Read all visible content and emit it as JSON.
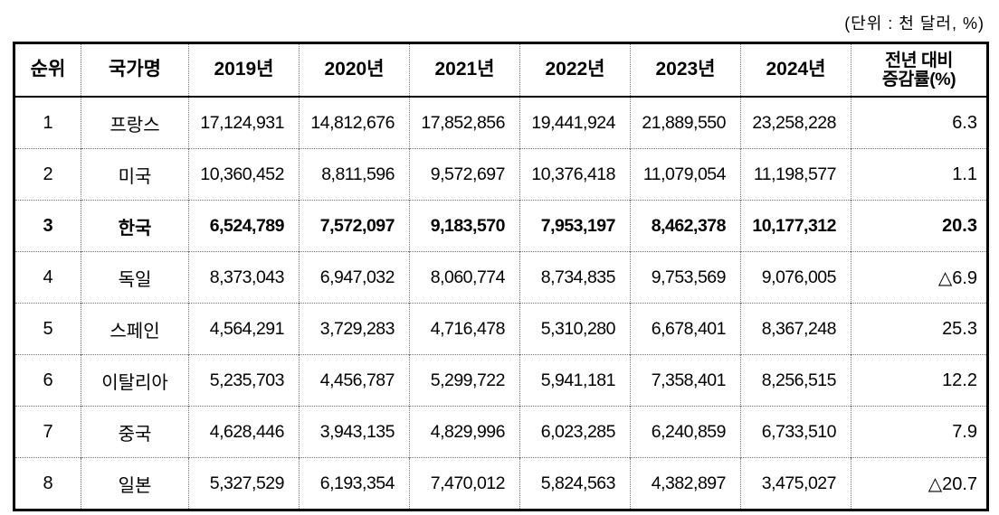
{
  "unit_label": "(단위 : 천 달러, %)",
  "table": {
    "columns": [
      "순위",
      "국가명",
      "2019년",
      "2020년",
      "2021년",
      "2022년",
      "2023년",
      "2024년"
    ],
    "change_header": {
      "full": "전년 대비 증감률(%)",
      "line1": "전년 대비",
      "line2": "증감률(%)"
    },
    "rows": [
      {
        "rank": "1",
        "country": "프랑스",
        "values": [
          "17,124,931",
          "14,812,676",
          "17,852,856",
          "19,441,924",
          "21,889,550",
          "23,258,228"
        ],
        "change": "6.3",
        "bold": false
      },
      {
        "rank": "2",
        "country": "미국",
        "values": [
          "10,360,452",
          "8,811,596",
          "9,572,697",
          "10,376,418",
          "11,079,054",
          "11,198,577"
        ],
        "change": "1.1",
        "bold": false
      },
      {
        "rank": "3",
        "country": "한국",
        "values": [
          "6,524,789",
          "7,572,097",
          "9,183,570",
          "7,953,197",
          "8,462,378",
          "10,177,312"
        ],
        "change": "20.3",
        "bold": true
      },
      {
        "rank": "4",
        "country": "독일",
        "values": [
          "8,373,043",
          "6,947,032",
          "8,060,774",
          "8,734,835",
          "9,753,569",
          "9,076,005"
        ],
        "change": "△6.9",
        "bold": false
      },
      {
        "rank": "5",
        "country": "스페인",
        "values": [
          "4,564,291",
          "3,729,283",
          "4,716,478",
          "5,310,280",
          "6,678,401",
          "8,367,248"
        ],
        "change": "25.3",
        "bold": false
      },
      {
        "rank": "6",
        "country": "이탈리아",
        "values": [
          "5,235,703",
          "4,456,787",
          "5,299,722",
          "5,941,181",
          "7,358,401",
          "8,256,515"
        ],
        "change": "12.2",
        "bold": false
      },
      {
        "rank": "7",
        "country": "중국",
        "values": [
          "4,628,446",
          "3,943,135",
          "4,829,996",
          "6,023,285",
          "6,240,859",
          "6,733,510"
        ],
        "change": "7.9",
        "bold": false
      },
      {
        "rank": "8",
        "country": "일본",
        "values": [
          "5,327,529",
          "6,193,354",
          "7,470,012",
          "5,824,563",
          "4,382,897",
          "3,475,027"
        ],
        "change": "△20.7",
        "bold": false
      }
    ]
  },
  "chart_data": {
    "type": "table",
    "title": "국가별 연도별 금액 및 전년 대비 증감률",
    "unit": "천 달러, %",
    "categories": [
      "2019",
      "2020",
      "2021",
      "2022",
      "2023",
      "2024"
    ],
    "series": [
      {
        "name": "프랑스",
        "values": [
          17124931,
          14812676,
          17852856,
          19441924,
          21889550,
          23258228
        ],
        "change_pct": 6.3
      },
      {
        "name": "미국",
        "values": [
          10360452,
          8811596,
          9572697,
          10376418,
          11079054,
          11198577
        ],
        "change_pct": 1.1
      },
      {
        "name": "한국",
        "values": [
          6524789,
          7572097,
          9183570,
          7953197,
          8462378,
          10177312
        ],
        "change_pct": 20.3
      },
      {
        "name": "독일",
        "values": [
          8373043,
          6947032,
          8060774,
          8734835,
          9753569,
          9076005
        ],
        "change_pct": -6.9
      },
      {
        "name": "스페인",
        "values": [
          4564291,
          3729283,
          4716478,
          5310280,
          6678401,
          8367248
        ],
        "change_pct": 25.3
      },
      {
        "name": "이탈리아",
        "values": [
          5235703,
          4456787,
          5299722,
          5941181,
          7358401,
          8256515
        ],
        "change_pct": 12.2
      },
      {
        "name": "중국",
        "values": [
          4628446,
          3943135,
          4829996,
          6023285,
          6240859,
          6733510
        ],
        "change_pct": 7.9
      },
      {
        "name": "일본",
        "values": [
          5327529,
          6193354,
          7470012,
          5824563,
          4382897,
          3475027
        ],
        "change_pct": -20.7
      }
    ]
  }
}
